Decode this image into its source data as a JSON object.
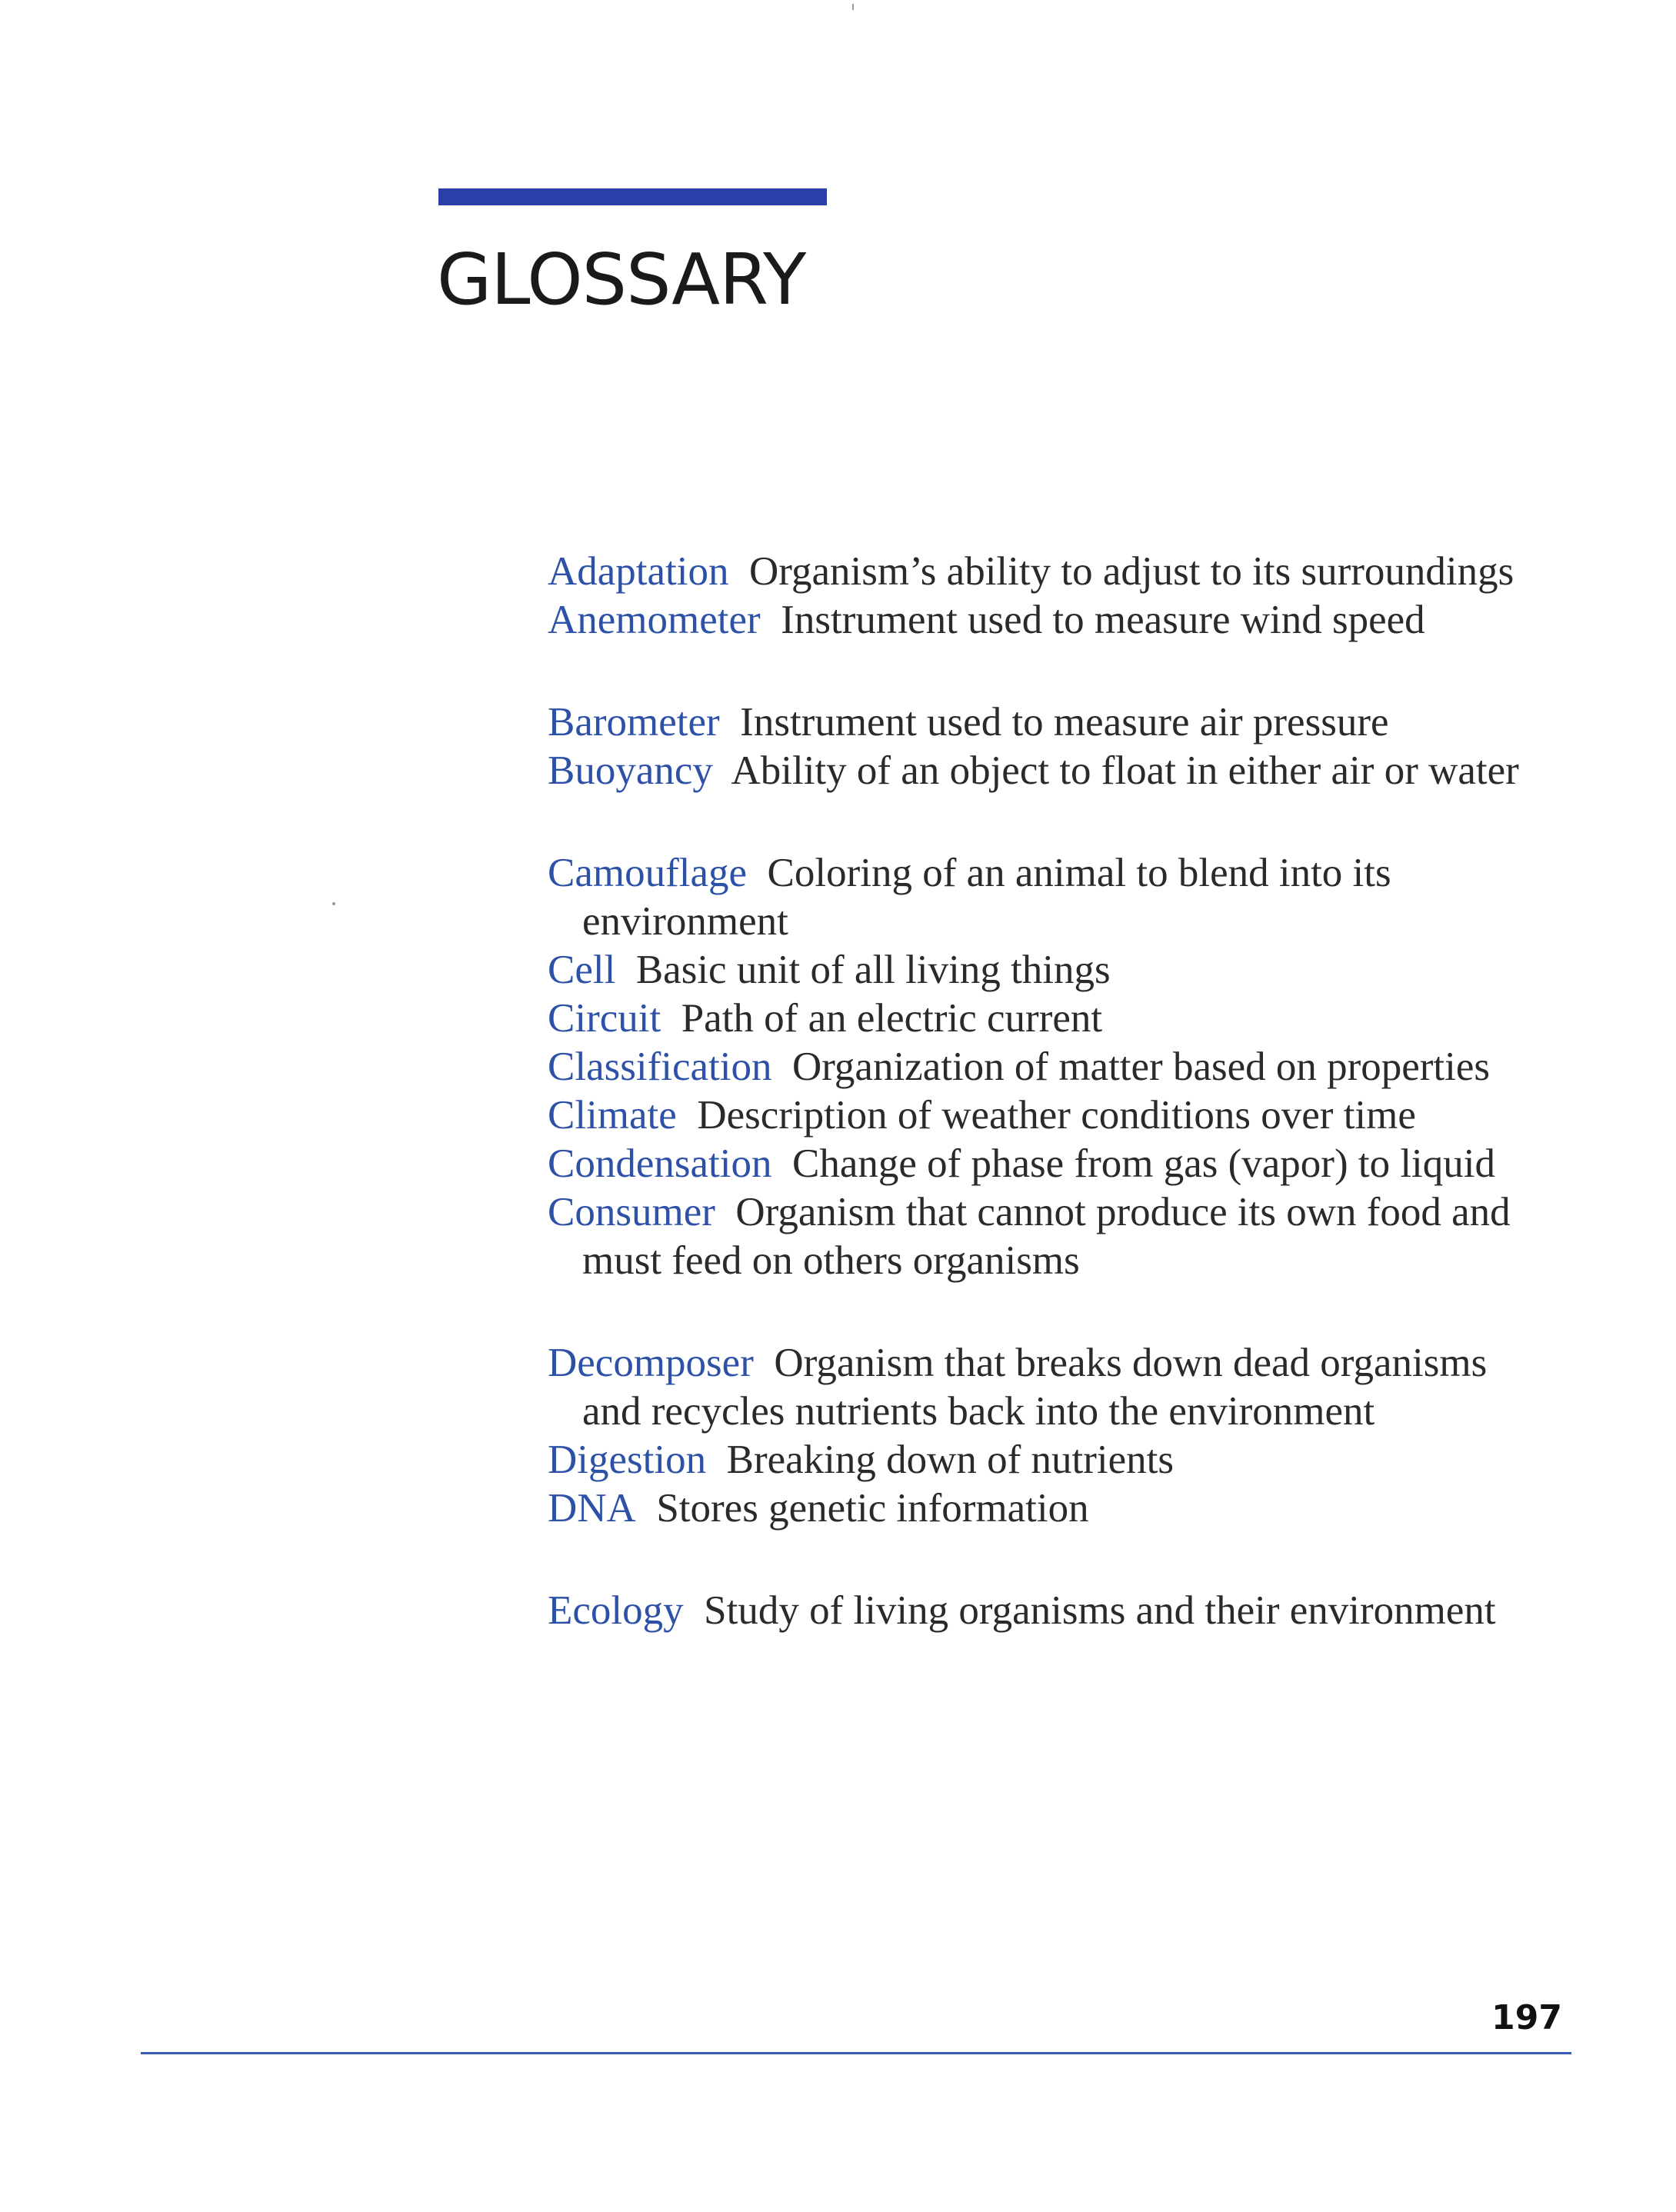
{
  "page": {
    "title": "GLOSSARY",
    "page_number": "197"
  },
  "colors": {
    "accent_bar": "#2b3fa8",
    "term": "#2e51a8",
    "rule": "#3a58b5"
  },
  "entries": [
    {
      "term": "Adaptation",
      "definition": "Organism’s ability to adjust to its surroundings"
    },
    {
      "term": "Anemometer",
      "definition": "Instrument used to measure wind speed"
    },
    {
      "term": "Barometer",
      "definition": "Instrument used to measure air pressure"
    },
    {
      "term": "Buoyancy",
      "definition": "Ability of an object to float in either air or water"
    },
    {
      "term": "Camouflage",
      "definition": "Coloring of an animal to blend into its environment"
    },
    {
      "term": "Cell",
      "definition": "Basic unit of all living things"
    },
    {
      "term": "Circuit",
      "definition": "Path of an electric current"
    },
    {
      "term": "Classification",
      "definition": "Organization of matter based on properties"
    },
    {
      "term": "Climate",
      "definition": "Description of weather conditions over time"
    },
    {
      "term": "Condensation",
      "definition": "Change of phase from gas (vapor) to liquid"
    },
    {
      "term": "Consumer",
      "definition": "Organism that cannot produce its own food and must feed on others organisms"
    },
    {
      "term": "Decomposer",
      "definition": "Organism that breaks down dead organisms and recycles nutrients back into the environment"
    },
    {
      "term": "Digestion",
      "definition": "Breaking down of nutrients"
    },
    {
      "term": "DNA",
      "definition": "Stores genetic information"
    },
    {
      "term": "Ecology",
      "definition": "Study of living organisms and their environment"
    }
  ]
}
